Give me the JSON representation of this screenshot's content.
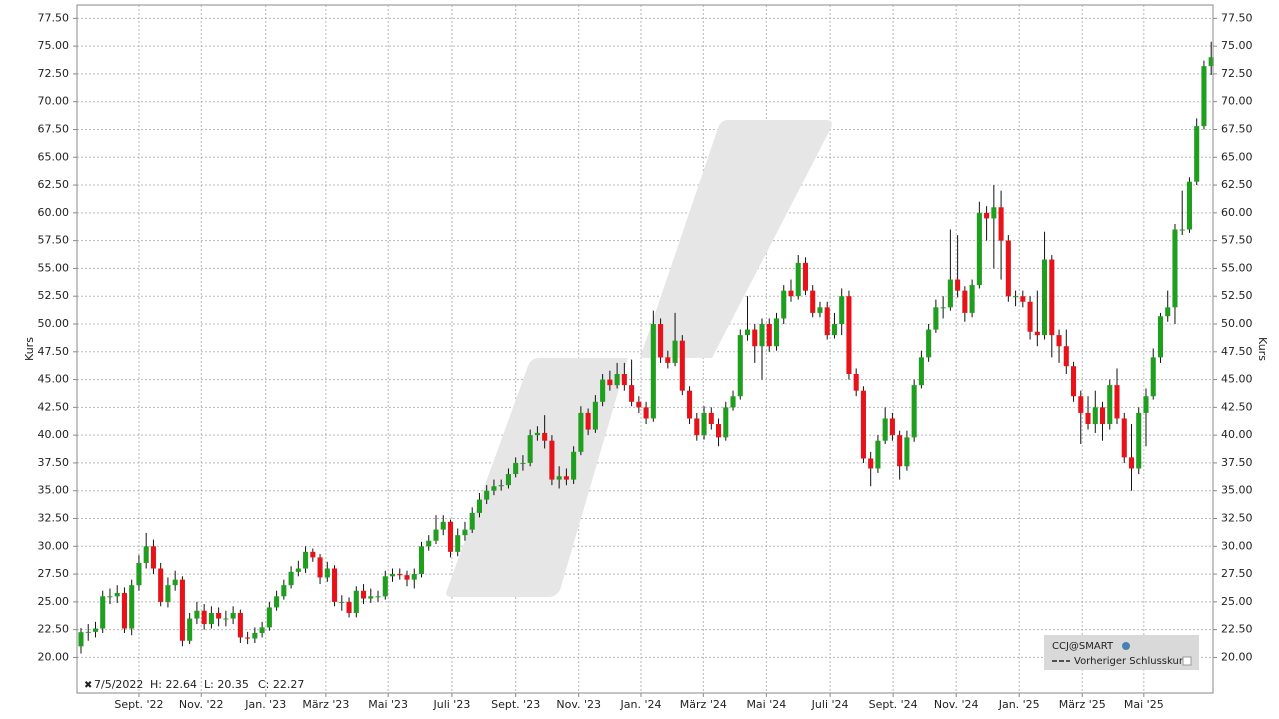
{
  "chart_data": {
    "type": "candlestick",
    "y_label": "Kurs",
    "legend": {
      "symbol": "CCJ@SMART",
      "previous_close": "Vorheriger Schlusskurs"
    },
    "info": {
      "date": "7/5/2022",
      "high": "H: 22.64",
      "low": "L: 20.35",
      "close": "C: 22.27"
    },
    "up_color": "#1f9e1f",
    "down_color": "#e8121a",
    "wick_color": "#111111",
    "grid": true,
    "xlim": [
      -0.55,
      156.25
    ],
    "xticks": [
      {
        "value": 8.0,
        "label": "Sept. '22"
      },
      {
        "value": 16.6,
        "label": "Nov. '22"
      },
      {
        "value": 25.5,
        "label": "Jan. '23"
      },
      {
        "value": 33.8,
        "label": "März '23"
      },
      {
        "value": 42.4,
        "label": "Mai '23"
      },
      {
        "value": 51.2,
        "label": "Juli '23"
      },
      {
        "value": 60.0,
        "label": "Sept. '23"
      },
      {
        "value": 68.7,
        "label": "Nov. '23"
      },
      {
        "value": 77.3,
        "label": "Jan. '24"
      },
      {
        "value": 85.9,
        "label": "März '24"
      },
      {
        "value": 94.6,
        "label": "Mai '24"
      },
      {
        "value": 103.4,
        "label": "Juli '24"
      },
      {
        "value": 112.1,
        "label": "Sept. '24"
      },
      {
        "value": 120.8,
        "label": "Nov. '24"
      },
      {
        "value": 129.5,
        "label": "Jan. '25"
      },
      {
        "value": 138.2,
        "label": "März '25"
      },
      {
        "value": 146.7,
        "label": "Mai '25"
      }
    ],
    "ylim": [
      16.8,
      78.7
    ],
    "yticks": [
      {
        "value": 20,
        "label": "20.00"
      },
      {
        "value": 22.5,
        "label": "22.50"
      },
      {
        "value": 25,
        "label": "25.00"
      },
      {
        "value": 27.5,
        "label": "27.50"
      },
      {
        "value": 30,
        "label": "30.00"
      },
      {
        "value": 32.5,
        "label": "32.50"
      },
      {
        "value": 35,
        "label": "35.00"
      },
      {
        "value": 37.5,
        "label": "37.50"
      },
      {
        "value": 40,
        "label": "40.00"
      },
      {
        "value": 42.5,
        "label": "42.50"
      },
      {
        "value": 45,
        "label": "45.00"
      },
      {
        "value": 47.5,
        "label": "47.50"
      },
      {
        "value": 50,
        "label": "50.00"
      },
      {
        "value": 52.5,
        "label": "52.50"
      },
      {
        "value": 55,
        "label": "55.00"
      },
      {
        "value": 57.5,
        "label": "57.50"
      },
      {
        "value": 60,
        "label": "60.00"
      },
      {
        "value": 62.5,
        "label": "62.50"
      },
      {
        "value": 65,
        "label": "65.00"
      },
      {
        "value": 67.5,
        "label": "67.50"
      },
      {
        "value": 70,
        "label": "70.00"
      },
      {
        "value": 72.5,
        "label": "72.50"
      },
      {
        "value": 75,
        "label": "75.00"
      },
      {
        "value": 77.5,
        "label": "77.50"
      }
    ],
    "open": [
      21.0,
      22.27,
      22.3,
      22.6,
      25.5,
      25.5,
      25.8,
      22.6,
      26.5,
      28.5,
      30,
      28,
      25,
      26.5,
      27,
      21.5,
      23.5,
      24.2,
      23,
      24,
      23.5,
      23.5,
      24,
      21.8,
      21.7,
      22.2,
      22.7,
      24.5,
      25.5,
      26.5,
      27.7,
      28,
      29.5,
      29,
      27.2,
      28,
      25,
      25,
      24,
      26,
      25.3,
      25.5,
      25.5,
      27.3,
      27.5,
      27.4,
      27,
      27.5,
      30,
      30.5,
      31.5,
      32.2,
      29.5,
      31,
      31.5,
      33,
      34.2,
      35,
      35.4,
      35.5,
      36.5,
      37.5,
      37.5,
      40,
      40.2,
      39.5,
      36,
      36.3,
      36,
      38.5,
      42,
      40.5,
      43,
      45,
      44.5,
      45.5,
      44.5,
      43,
      42.5,
      41.5,
      50,
      47,
      46.5,
      48.5,
      44,
      41.5,
      40,
      42,
      41,
      39.8,
      42.5,
      43.5,
      49,
      49.5,
      48,
      50,
      48,
      50.5,
      53,
      52.5,
      55.5,
      53,
      51,
      51.5,
      49,
      50,
      52.5,
      45.5,
      44,
      37.9,
      37,
      39.5,
      41.5,
      40,
      37.2,
      39.8,
      44.5,
      47,
      49.5,
      51.5,
      51.5,
      54,
      53,
      51,
      53.5,
      60,
      59.5,
      60.5,
      57.5,
      52.5,
      52.5,
      52,
      49.3,
      49,
      55.8,
      49,
      48,
      46.2,
      43.5,
      42,
      41,
      42.5,
      41,
      44.5,
      41.5,
      38,
      37,
      42,
      43.5,
      47,
      50.7,
      51.5,
      58.5,
      58.5,
      62.8,
      67.8,
      73.2
    ],
    "high": [
      22.64,
      23.0,
      23.2,
      26.0,
      26.2,
      26.5,
      26.3,
      27.0,
      29.2,
      31.2,
      30.6,
      28.5,
      27.2,
      27.8,
      27.3,
      24.0,
      25.0,
      24.8,
      24.6,
      24.5,
      24.2,
      24.6,
      24.3,
      22.3,
      22.7,
      23.2,
      25.0,
      26.0,
      27.0,
      28.2,
      28.7,
      30.0,
      29.8,
      29.3,
      28.6,
      28.3,
      25.6,
      25.4,
      26.4,
      26.6,
      26.2,
      26.0,
      27.8,
      28.0,
      28.0,
      27.8,
      28.0,
      30.4,
      31.0,
      32.8,
      32.8,
      32.4,
      31.6,
      32.2,
      33.5,
      34.8,
      35.5,
      36.0,
      36.0,
      37.0,
      38.0,
      38.2,
      40.5,
      40.8,
      41.8,
      40.0,
      37.2,
      37.0,
      39.0,
      42.6,
      42.4,
      43.6,
      45.5,
      45.8,
      46.5,
      46.5,
      46.8,
      43.5,
      43.0,
      51.2,
      50.5,
      47.6,
      51.0,
      49.0,
      44.4,
      42.0,
      42.6,
      42.5,
      41.5,
      43.0,
      44.0,
      49.5,
      52.5,
      50.0,
      50.5,
      50.5,
      51.0,
      53.5,
      54.0,
      56.2,
      56.0,
      53.5,
      52.0,
      52.0,
      51.0,
      53.2,
      53.0,
      46.0,
      44.4,
      38.5,
      40.0,
      42.5,
      42.0,
      40.4,
      40.4,
      45.0,
      47.6,
      50.0,
      52.2,
      52.5,
      58.5,
      58.0,
      53.4,
      54.0,
      61.0,
      60.6,
      62.5,
      62.0,
      58.0,
      53.0,
      53.0,
      52.5,
      53.0,
      58.3,
      56.2,
      49.5,
      49.5,
      46.6,
      44.0,
      43.5,
      44.0,
      43.0,
      45.0,
      46.0,
      42.0,
      41.0,
      42.5,
      44.2,
      47.8,
      51.0,
      53.0,
      59.0,
      62.0,
      63.2,
      68.5,
      73.7,
      75.4
    ],
    "low": [
      20.35,
      21.5,
      21.8,
      22.2,
      24.8,
      24.9,
      22.2,
      22.0,
      26.0,
      28.0,
      27.5,
      24.6,
      24.5,
      26.0,
      21.0,
      21.2,
      23.0,
      22.5,
      22.6,
      22.8,
      22.8,
      23.0,
      21.3,
      21.2,
      21.3,
      21.8,
      22.4,
      24.2,
      25.2,
      26.2,
      27.3,
      27.6,
      28.6,
      26.6,
      26.8,
      24.6,
      24.2,
      23.6,
      23.6,
      24.8,
      24.9,
      25.0,
      25.2,
      26.8,
      27.0,
      26.4,
      26.2,
      27.2,
      29.6,
      30.2,
      31.0,
      29.0,
      29.1,
      30.5,
      31.2,
      32.6,
      33.8,
      34.6,
      35.0,
      35.2,
      36.2,
      36.8,
      37.2,
      39.5,
      38.8,
      35.5,
      35.2,
      35.5,
      35.6,
      38.2,
      40.0,
      40.2,
      42.6,
      44.0,
      44.2,
      44.0,
      42.6,
      42.0,
      41.0,
      41.2,
      46.5,
      46.0,
      46.2,
      43.6,
      41.0,
      39.5,
      39.6,
      40.5,
      39.0,
      39.5,
      42.2,
      43.2,
      48.5,
      46.5,
      45.0,
      47.5,
      47.6,
      50.0,
      52.0,
      52.2,
      52.6,
      50.6,
      50.6,
      48.6,
      48.7,
      49.0,
      45.0,
      43.5,
      37.5,
      35.4,
      36.6,
      39.2,
      39.5,
      36.0,
      36.8,
      39.4,
      44.2,
      46.6,
      49.2,
      50.5,
      51.2,
      52.4,
      50.2,
      50.6,
      53.2,
      57.5,
      55.0,
      54.0,
      52.0,
      51.6,
      51.5,
      48.6,
      48.0,
      48.6,
      47.0,
      46.5,
      45.5,
      43.0,
      39.2,
      40.5,
      40.2,
      39.5,
      40.5,
      41.0,
      37.5,
      35.0,
      36.5,
      39.0,
      43.2,
      46.5,
      50.2,
      50.0,
      58.0,
      58.2,
      62.5,
      67.5,
      72.4
    ],
    "close": [
      22.27,
      22.3,
      22.6,
      25.5,
      25.5,
      25.8,
      22.6,
      26.5,
      28.5,
      30,
      28,
      25,
      26.5,
      27,
      21.5,
      23.5,
      24.2,
      23,
      24,
      23.5,
      23.5,
      24,
      21.8,
      21.7,
      22.2,
      22.7,
      24.5,
      25.5,
      26.5,
      27.7,
      28,
      29.5,
      29,
      27.2,
      28,
      25,
      25,
      24,
      26,
      25.3,
      25.5,
      25.5,
      27.3,
      27.5,
      27.4,
      27,
      27.5,
      30,
      30.5,
      31.5,
      32.2,
      29.5,
      31,
      31.5,
      33,
      34.2,
      35,
      35.4,
      35.5,
      36.5,
      37.5,
      37.5,
      40,
      40.2,
      39.5,
      36,
      36.3,
      36,
      38.5,
      42,
      40.5,
      43,
      45,
      44.5,
      45.5,
      44.5,
      43,
      42.5,
      41.5,
      50,
      47,
      46.5,
      48.5,
      44,
      41.5,
      40,
      42,
      41,
      39.8,
      42.5,
      43.5,
      49,
      49.5,
      48,
      50,
      48,
      50.5,
      53,
      52.5,
      55.5,
      53,
      51,
      51.5,
      49,
      50,
      52.5,
      45.5,
      44,
      37.9,
      37,
      39.5,
      41.5,
      40,
      37.2,
      39.8,
      44.5,
      47,
      49.5,
      51.5,
      51.5,
      54,
      53,
      51,
      53.5,
      60,
      59.5,
      60.5,
      57.5,
      52.5,
      52.5,
      52,
      49.3,
      49,
      55.8,
      49,
      48,
      46.2,
      43.5,
      42,
      41,
      42.5,
      41,
      44.5,
      41.5,
      38,
      37,
      42,
      43.5,
      47,
      50.7,
      51.5,
      58.5,
      58.5,
      62.8,
      67.8,
      73.2,
      74
    ]
  }
}
